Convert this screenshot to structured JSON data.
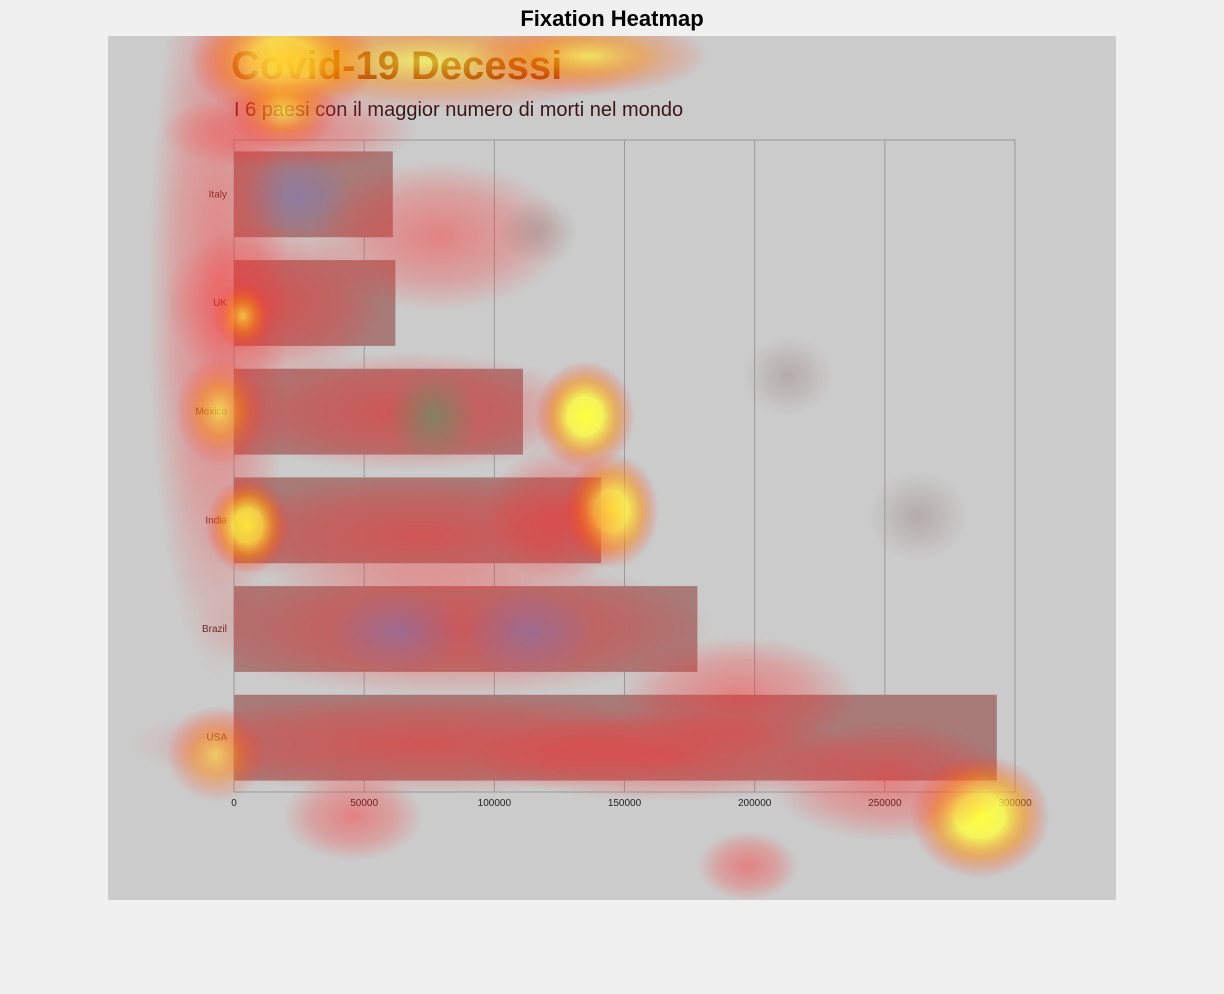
{
  "figure": {
    "title": "Fixation Heatmap"
  },
  "colors": {
    "page_bg": "#f0f0f0",
    "stimulus_bg": "#cbcbcb",
    "bar_fill": "#a87a78",
    "grid": "#9a9a9a",
    "heat_hot": "#ffff40",
    "heat_warm": "#ff8a00",
    "heat_cool": "#ff2a2a"
  },
  "chart_data": {
    "type": "bar",
    "orientation": "horizontal",
    "title": "Covid-19 Decessi",
    "subtitle": "I 6 paesi con il maggior numero di morti nel mondo",
    "categories": [
      "Italy",
      "UK",
      "Mexico",
      "India",
      "Brazil",
      "USA"
    ],
    "values": [
      61000,
      62000,
      111000,
      141000,
      178000,
      293000
    ],
    "xlim": [
      0,
      300000
    ],
    "xticks": [
      0,
      50000,
      100000,
      150000,
      200000,
      250000,
      300000
    ],
    "xtick_labels": [
      "0",
      "50000",
      "100000",
      "150000",
      "200000",
      "250000",
      "300000"
    ],
    "grid": true,
    "legend": "none"
  }
}
